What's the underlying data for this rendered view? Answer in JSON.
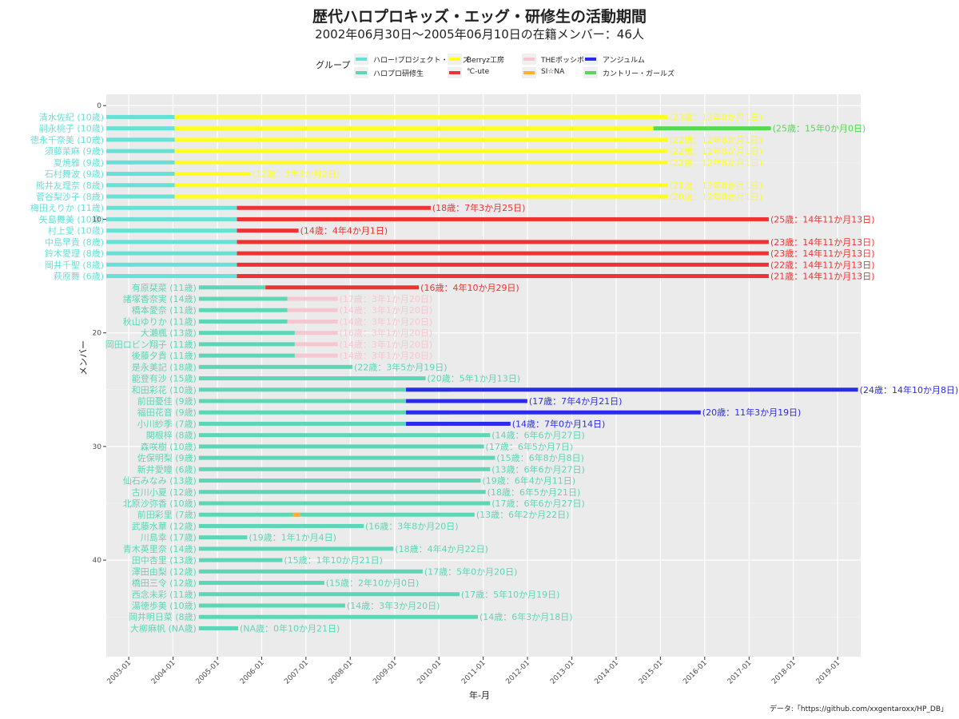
{
  "chart_data": {
    "type": "gantt",
    "title": "歴代ハロプロキッズ・エッグ・研修生の活動期間",
    "subtitle": "2002年06月30日〜2005年06月10日の在籍メンバー：46人",
    "xlabel": "年-月",
    "ylabel": "メンバー",
    "caption": "データ:「https://github.com/xxgentaroxx/HP_DB」",
    "legend_title": "グループ",
    "x_ticks": [
      "2003-01",
      "2004-01",
      "2005-01",
      "2006-01",
      "2007-01",
      "2008-01",
      "2009-01",
      "2010-01",
      "2011-01",
      "2012-01",
      "2013-01",
      "2014-01",
      "2015-01",
      "2016-01",
      "2017-01",
      "2018-01",
      "2019-01"
    ],
    "y_ticks": [
      "0",
      "10",
      "20",
      "30",
      "40"
    ],
    "xlim": [
      "2002-06-30",
      "2019-07-10"
    ],
    "ylim": [
      -1,
      48.5
    ],
    "groups": [
      {
        "key": "kids",
        "name": "ハロー!プロジェクト・キッズ",
        "color": "#67e0d6"
      },
      {
        "key": "kenshu",
        "name": "ハロプロ研修生",
        "color": "#5cd6b6"
      },
      {
        "key": "berryz",
        "name": "Berryz工房",
        "color": "#ffff22"
      },
      {
        "key": "cute",
        "name": "℃-ute",
        "color": "#ee3333"
      },
      {
        "key": "possible",
        "name": "THEポッシボー",
        "color": "#f6c7d1"
      },
      {
        "key": "sina",
        "name": "SI☆NA",
        "color": "#ffb030"
      },
      {
        "key": "angerme",
        "name": "アンジュルム",
        "color": "#2b2bee"
      },
      {
        "key": "country",
        "name": "カントリー・ガールズ",
        "color": "#57d657"
      }
    ],
    "members": [
      {
        "name": "清水佐紀 (10歳)",
        "label_group": "kids",
        "label": "(23歳：12年8か月1日)",
        "label_color": "berryz",
        "segments": [
          [
            "kids",
            "2002-06-30",
            "2004-01-15"
          ],
          [
            "berryz",
            "2004-01-15",
            "2015-03-03"
          ]
        ]
      },
      {
        "name": "嗣永桃子 (10歳)",
        "label_group": "kids",
        "label": "(25歳：15年0か月0日)",
        "label_color": "country",
        "segments": [
          [
            "kids",
            "2002-06-30",
            "2004-01-15"
          ],
          [
            "berryz",
            "2004-01-15",
            "2015-03-03"
          ],
          [
            "country",
            "2014-11-05",
            "2017-06-30"
          ]
        ]
      },
      {
        "name": "徳永千奈美 (10歳)",
        "label_group": "kids",
        "label": "(22歳：12年8か月1日)",
        "label_color": "berryz",
        "segments": [
          [
            "kids",
            "2002-06-30",
            "2004-01-15"
          ],
          [
            "berryz",
            "2004-01-15",
            "2015-03-03"
          ]
        ]
      },
      {
        "name": "須藤茉麻 (9歳)",
        "label_group": "kids",
        "label": "(22歳：12年8か月1日)",
        "label_color": "berryz",
        "segments": [
          [
            "kids",
            "2002-06-30",
            "2004-01-15"
          ],
          [
            "berryz",
            "2004-01-15",
            "2015-03-03"
          ]
        ]
      },
      {
        "name": "夏焼雅 (9歳)",
        "label_group": "kids",
        "label": "(22歳：12年8か月1日)",
        "label_color": "berryz",
        "segments": [
          [
            "kids",
            "2002-06-30",
            "2004-01-15"
          ],
          [
            "berryz",
            "2004-01-15",
            "2015-03-03"
          ]
        ]
      },
      {
        "name": "石村舞波 (9歳)",
        "label_group": "kids",
        "label": "(12歳：3年3か月2日)",
        "label_color": "berryz",
        "segments": [
          [
            "kids",
            "2002-06-30",
            "2004-01-15"
          ],
          [
            "berryz",
            "2004-01-15",
            "2005-10-02"
          ]
        ]
      },
      {
        "name": "熊井友理奈 (8歳)",
        "label_group": "kids",
        "label": "(21歳：12年8か月1日)",
        "label_color": "berryz",
        "segments": [
          [
            "kids",
            "2002-06-30",
            "2004-01-15"
          ],
          [
            "berryz",
            "2004-01-15",
            "2015-03-03"
          ]
        ]
      },
      {
        "name": "菅谷梨沙子 (8歳)",
        "label_group": "kids",
        "label": "(20歳：12年8か月1日)",
        "label_color": "berryz",
        "segments": [
          [
            "kids",
            "2002-06-30",
            "2004-01-15"
          ],
          [
            "berryz",
            "2004-01-15",
            "2015-03-03"
          ]
        ]
      },
      {
        "name": "梅田えりか (11歳)",
        "label_group": "kids",
        "label": "(18歳：7年3か月25日)",
        "label_color": "cute",
        "segments": [
          [
            "kids",
            "2002-06-30",
            "2005-06-11"
          ],
          [
            "cute",
            "2005-06-11",
            "2009-10-25"
          ]
        ]
      },
      {
        "name": "矢島舞美 (10歳)",
        "label_group": "kids",
        "label": "(25歳：14年11か月13日)",
        "label_color": "cute",
        "segments": [
          [
            "kids",
            "2002-06-30",
            "2005-06-11"
          ],
          [
            "cute",
            "2005-06-11",
            "2017-06-12"
          ]
        ]
      },
      {
        "name": "村上愛 (10歳)",
        "label_group": "kids",
        "label": "(14歳：4年4か月1日)",
        "label_color": "cute",
        "segments": [
          [
            "kids",
            "2002-06-30",
            "2005-06-11"
          ],
          [
            "cute",
            "2005-06-11",
            "2006-11-01"
          ]
        ]
      },
      {
        "name": "中島早貴 (8歳)",
        "label_group": "kids",
        "label": "(23歳：14年11か月13日)",
        "label_color": "cute",
        "segments": [
          [
            "kids",
            "2002-06-30",
            "2005-06-11"
          ],
          [
            "cute",
            "2005-06-11",
            "2017-06-12"
          ]
        ]
      },
      {
        "name": "鈴木愛理 (8歳)",
        "label_group": "kids",
        "label": "(23歳：14年11か月13日)",
        "label_color": "cute",
        "segments": [
          [
            "kids",
            "2002-06-30",
            "2005-06-11"
          ],
          [
            "cute",
            "2005-06-11",
            "2017-06-12"
          ]
        ]
      },
      {
        "name": "岡井千聖 (8歳)",
        "label_group": "kids",
        "label": "(22歳：14年11か月13日)",
        "label_color": "cute",
        "segments": [
          [
            "kids",
            "2002-06-30",
            "2005-06-11"
          ],
          [
            "cute",
            "2005-06-11",
            "2017-06-12"
          ]
        ]
      },
      {
        "name": "萩原舞 (6歳)",
        "label_group": "kids",
        "label": "(21歳：14年11か月13日)",
        "label_color": "cute",
        "segments": [
          [
            "kids",
            "2002-06-30",
            "2005-06-11"
          ],
          [
            "cute",
            "2005-06-11",
            "2017-06-12"
          ]
        ]
      },
      {
        "name": "有原栞菜 (11歳)",
        "label_group": "kenshu",
        "label": "(16歳：4年10か月29日)",
        "label_color": "cute",
        "segments": [
          [
            "kenshu",
            "2004-08-01",
            "2006-02-01"
          ],
          [
            "cute",
            "2006-02-01",
            "2009-07-20"
          ]
        ]
      },
      {
        "name": "諸塚香奈実 (14歳)",
        "label_group": "kenshu",
        "label": "(17歳：3年1か月20日)",
        "label_color": "possible",
        "segments": [
          [
            "kenshu",
            "2004-08-01",
            "2006-08-01"
          ],
          [
            "possible",
            "2006-08-01",
            "2007-09-20"
          ]
        ]
      },
      {
        "name": "橋本愛奈 (11歳)",
        "label_group": "kenshu",
        "label": "(14歳：3年1か月20日)",
        "label_color": "possible",
        "segments": [
          [
            "kenshu",
            "2004-08-01",
            "2006-08-01"
          ],
          [
            "possible",
            "2006-08-01",
            "2007-09-20"
          ]
        ]
      },
      {
        "name": "秋山ゆりか (11歳)",
        "label_group": "kenshu",
        "label": "(14歳：3年1か月20日)",
        "label_color": "possible",
        "segments": [
          [
            "kenshu",
            "2004-08-01",
            "2006-08-01"
          ],
          [
            "possible",
            "2006-08-01",
            "2007-09-20"
          ]
        ]
      },
      {
        "name": "大瀬楓 (13歳)",
        "label_group": "kenshu",
        "label": "(16歳：3年1か月20日)",
        "label_color": "possible",
        "segments": [
          [
            "kenshu",
            "2004-08-01",
            "2006-10-01"
          ],
          [
            "possible",
            "2006-10-01",
            "2007-09-20"
          ]
        ]
      },
      {
        "name": "岡田ロビン翔子 (11歳)",
        "label_group": "kenshu",
        "label": "(14歳：3年1か月20日)",
        "label_color": "possible",
        "segments": [
          [
            "kenshu",
            "2004-08-01",
            "2006-10-01"
          ],
          [
            "possible",
            "2006-10-01",
            "2007-09-20"
          ]
        ]
      },
      {
        "name": "後藤夕貴 (11歳)",
        "label_group": "kenshu",
        "label": "(14歳：3年1か月20日)",
        "label_color": "possible",
        "segments": [
          [
            "kenshu",
            "2004-08-01",
            "2006-10-01"
          ],
          [
            "possible",
            "2006-10-01",
            "2007-09-20"
          ]
        ]
      },
      {
        "name": "是永美記 (18歳)",
        "label_group": "kenshu",
        "label": "(22歳：3年5か月19日)",
        "label_color": "kenshu",
        "segments": [
          [
            "kenshu",
            "2004-08-01",
            "2008-01-19"
          ]
        ]
      },
      {
        "name": "能登有沙 (15歳)",
        "label_group": "kenshu",
        "label": "(20歳：5年1か月13日)",
        "label_color": "kenshu",
        "segments": [
          [
            "kenshu",
            "2004-08-01",
            "2009-09-13"
          ]
        ]
      },
      {
        "name": "和田彩花 (10歳)",
        "label_group": "kenshu",
        "label": "(24歳：14年10か月8日)",
        "label_color": "angerme",
        "segments": [
          [
            "kenshu",
            "2004-08-01",
            "2010-04-01"
          ],
          [
            "angerme",
            "2009-04-05",
            "2019-06-18"
          ]
        ]
      },
      {
        "name": "前田憂佳 (9歳)",
        "label_group": "kenshu",
        "label": "(17歳：7年4か月21日)",
        "label_color": "angerme",
        "segments": [
          [
            "kenshu",
            "2004-08-01",
            "2010-04-01"
          ],
          [
            "angerme",
            "2009-04-05",
            "2011-12-31"
          ]
        ]
      },
      {
        "name": "福田花音 (9歳)",
        "label_group": "kenshu",
        "label": "(20歳：11年3か月19日)",
        "label_color": "angerme",
        "segments": [
          [
            "kenshu",
            "2004-08-01",
            "2010-04-01"
          ],
          [
            "angerme",
            "2009-04-05",
            "2015-11-29"
          ]
        ]
      },
      {
        "name": "小川紗季 (7歳)",
        "label_group": "kenshu",
        "label": "(14歳：7年0か月14日)",
        "label_color": "angerme",
        "segments": [
          [
            "kenshu",
            "2004-08-01",
            "2010-04-01"
          ],
          [
            "angerme",
            "2009-04-05",
            "2011-08-14"
          ]
        ]
      },
      {
        "name": "関根梓 (8歳)",
        "label_group": "kenshu",
        "label": "(14歳：6年6か月27日)",
        "label_color": "kenshu",
        "segments": [
          [
            "kenshu",
            "2004-08-01",
            "2011-02-27"
          ]
        ]
      },
      {
        "name": "森咲樹 (10歳)",
        "label_group": "kenshu",
        "label": "(17歳：6年5か月7日)",
        "label_color": "kenshu",
        "segments": [
          [
            "kenshu",
            "2004-08-01",
            "2011-01-07"
          ]
        ]
      },
      {
        "name": "佐保明梨 (9歳)",
        "label_group": "kenshu",
        "label": "(15歳：6年8か月8日)",
        "label_color": "kenshu",
        "segments": [
          [
            "kenshu",
            "2004-08-01",
            "2011-04-08"
          ]
        ]
      },
      {
        "name": "新井愛瞳 (6歳)",
        "label_group": "kenshu",
        "label": "(13歳：6年6か月27日)",
        "label_color": "kenshu",
        "segments": [
          [
            "kenshu",
            "2004-08-01",
            "2011-02-27"
          ]
        ]
      },
      {
        "name": "仙石みなみ (13歳)",
        "label_group": "kenshu",
        "label": "(19歳：6年4か月11日)",
        "label_color": "kenshu",
        "segments": [
          [
            "kenshu",
            "2004-08-01",
            "2010-12-11"
          ]
        ]
      },
      {
        "name": "古川小夏 (12歳)",
        "label_group": "kenshu",
        "label": "(18歳：6年5か月21日)",
        "label_color": "kenshu",
        "segments": [
          [
            "kenshu",
            "2004-08-01",
            "2011-01-21"
          ]
        ]
      },
      {
        "name": "北原沙弥香 (10歳)",
        "label_group": "kenshu",
        "label": "(17歳：6年6か月27日)",
        "label_color": "kenshu",
        "segments": [
          [
            "kenshu",
            "2004-08-01",
            "2011-02-27"
          ]
        ]
      },
      {
        "name": "前田彩里 (7歳)",
        "label_group": "kenshu",
        "label": "(13歳：6年2か月22日)",
        "label_color": "kenshu",
        "segments": [
          [
            "kenshu",
            "2004-08-01",
            "2010-10-22"
          ],
          [
            "sina",
            "2006-09-15",
            "2006-11-15"
          ]
        ]
      },
      {
        "name": "武藤水華 (12歳)",
        "label_group": "kenshu",
        "label": "(16歳：3年8か月20日)",
        "label_color": "kenshu",
        "segments": [
          [
            "kenshu",
            "2004-08-01",
            "2008-04-20"
          ]
        ]
      },
      {
        "name": "川島幸 (17歳)",
        "label_group": "kenshu",
        "label": "(19歳：1年1か月4日)",
        "label_color": "kenshu",
        "segments": [
          [
            "kenshu",
            "2004-08-01",
            "2005-09-04"
          ]
        ]
      },
      {
        "name": "青木英里奈 (14歳)",
        "label_group": "kenshu",
        "label": "(18歳：4年4か月22日)",
        "label_color": "kenshu",
        "segments": [
          [
            "kenshu",
            "2004-08-01",
            "2008-12-22"
          ]
        ]
      },
      {
        "name": "田中杏里 (13歳)",
        "label_group": "kenshu",
        "label": "(15歳：1年10か月21日)",
        "label_color": "kenshu",
        "segments": [
          [
            "kenshu",
            "2004-08-01",
            "2006-06-21"
          ]
        ]
      },
      {
        "name": "澤田由梨 (12歳)",
        "label_group": "kenshu",
        "label": "(17歳：5年0か月20日)",
        "label_color": "kenshu",
        "segments": [
          [
            "kenshu",
            "2004-08-01",
            "2009-08-20"
          ]
        ]
      },
      {
        "name": "橋田三令 (12歳)",
        "label_group": "kenshu",
        "label": "(15歳：2年10か月0日)",
        "label_color": "kenshu",
        "segments": [
          [
            "kenshu",
            "2004-08-01",
            "2007-06-01"
          ]
        ]
      },
      {
        "name": "西念未彩 (11歳)",
        "label_group": "kenshu",
        "label": "(17歳：5年10か月19日)",
        "label_color": "kenshu",
        "segments": [
          [
            "kenshu",
            "2004-08-01",
            "2010-06-19"
          ]
        ]
      },
      {
        "name": "湯徳歩美 (10歳)",
        "label_group": "kenshu",
        "label": "(14歳：3年3か月20日)",
        "label_color": "kenshu",
        "segments": [
          [
            "kenshu",
            "2004-08-01",
            "2007-11-20"
          ]
        ]
      },
      {
        "name": "岡井明日菜 (8歳)",
        "label_group": "kenshu",
        "label": "(14歳：6年3か月18日)",
        "label_color": "kenshu",
        "segments": [
          [
            "kenshu",
            "2004-08-01",
            "2010-11-18"
          ]
        ]
      },
      {
        "name": "大柳麻帆 (NA歳)",
        "label_group": "kenshu",
        "label": "(NA歳：0年10か月21日)",
        "label_color": "kenshu",
        "segments": [
          [
            "kenshu",
            "2004-08-01",
            "2005-06-21"
          ]
        ]
      }
    ]
  }
}
